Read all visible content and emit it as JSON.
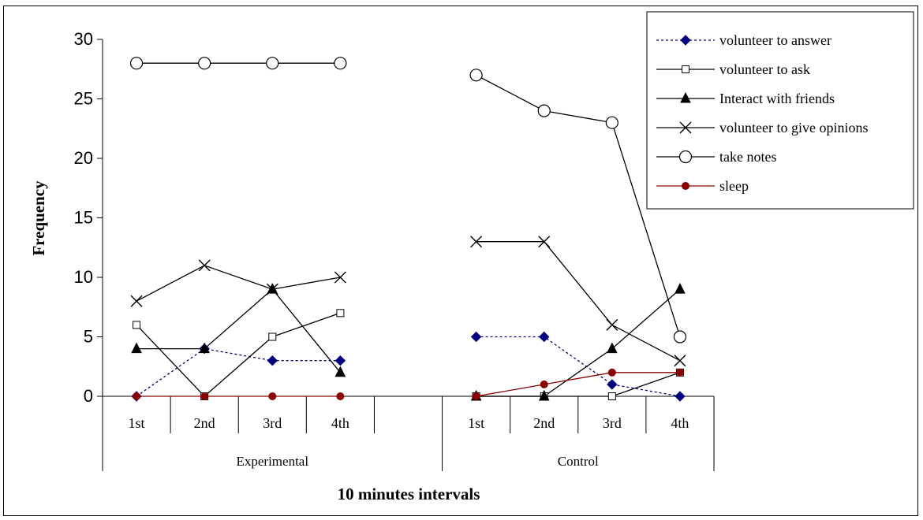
{
  "chart_data": {
    "type": "line",
    "xlabel": "10 minutes intervals",
    "ylabel": "Frequency",
    "ylim": [
      0,
      30
    ],
    "yticks": [
      0,
      5,
      10,
      15,
      20,
      25,
      30
    ],
    "groups": [
      {
        "name": "Experimental",
        "categories": [
          "1st",
          "2nd",
          "3rd",
          "4th"
        ]
      },
      {
        "name": "Control",
        "categories": [
          "1st",
          "2nd",
          "3rd",
          "4th"
        ]
      }
    ],
    "legend_position": "top-right",
    "series": [
      {
        "name": "volunteer to answer",
        "color": "#000080",
        "marker": "diamond",
        "line": "dotted",
        "experimental": [
          0,
          4,
          3,
          3
        ],
        "control": [
          5,
          5,
          1,
          0
        ]
      },
      {
        "name": "volunteer to ask",
        "color": "#000000",
        "marker": "square-open",
        "line": "solid",
        "experimental": [
          6,
          0,
          5,
          7
        ],
        "control": [
          0,
          0,
          0,
          2
        ]
      },
      {
        "name": "Interact with friends",
        "color": "#000000",
        "marker": "triangle",
        "line": "solid",
        "experimental": [
          4,
          4,
          9,
          2
        ],
        "control": [
          0,
          0,
          4,
          9
        ]
      },
      {
        "name": "volunteer to give opinions",
        "color": "#000000",
        "marker": "x",
        "line": "solid",
        "experimental": [
          8,
          11,
          9,
          10
        ],
        "control": [
          13,
          13,
          6,
          3
        ]
      },
      {
        "name": "take notes",
        "color": "#000000",
        "marker": "circle-open",
        "line": "solid",
        "experimental": [
          28,
          28,
          28,
          28
        ],
        "control": [
          27,
          24,
          23,
          5
        ]
      },
      {
        "name": "sleep",
        "color": "#8b0000",
        "marker": "circle-filled",
        "line": "solid",
        "experimental": [
          0,
          0,
          0,
          0
        ],
        "control": [
          0,
          1,
          2,
          2
        ]
      }
    ]
  }
}
